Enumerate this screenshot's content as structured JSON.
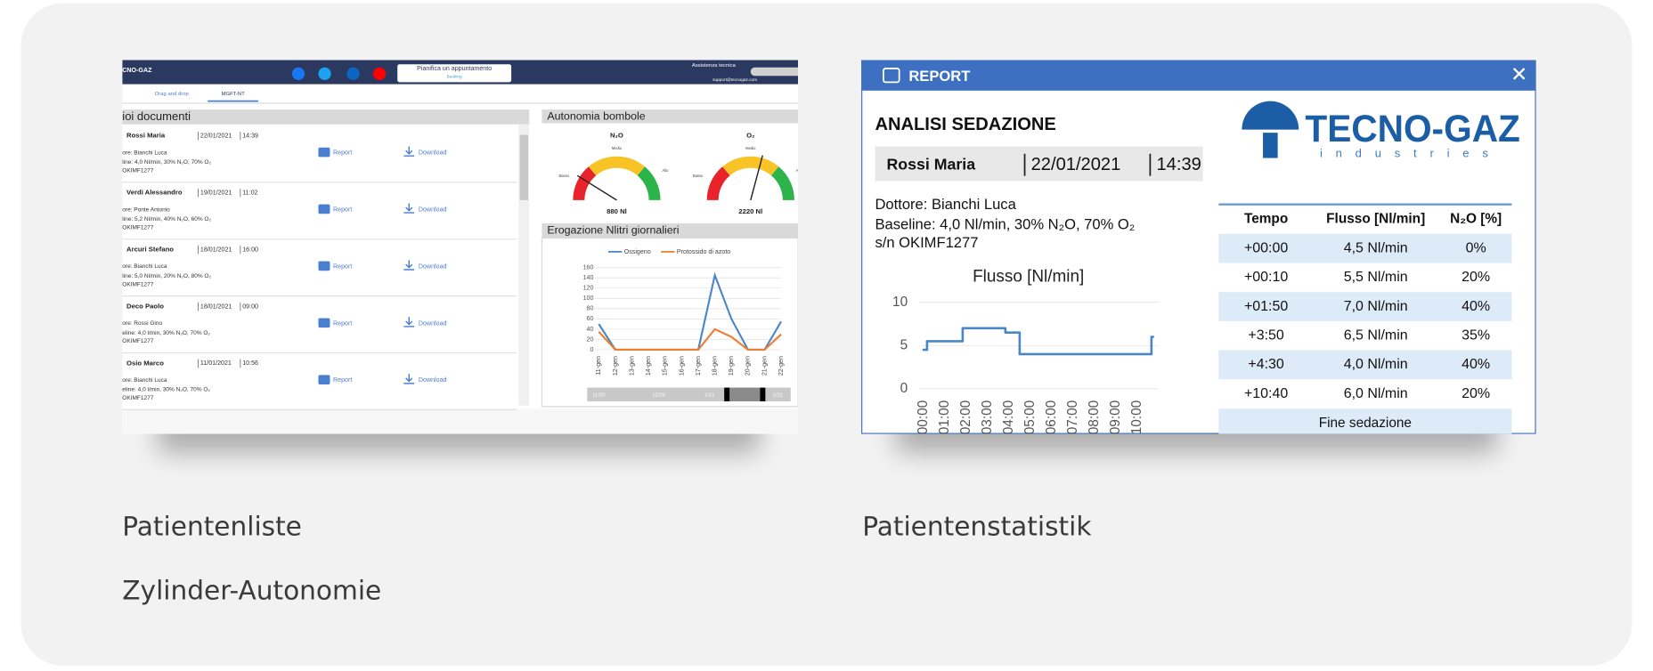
{
  "patient_list": {
    "caption": "Patientenliste",
    "caption_2": "Zylinder-Autonomie",
    "brand": "CNO-GAZ",
    "booking_title": "Pianifica un appuntamento",
    "booking_sub": "Booking",
    "support_title": "Assistenza tecnica",
    "support_email": "support@tecnogaz.com",
    "tabs": [
      "Drag and drop",
      "MGFT-NT"
    ],
    "documents_title": "ioi documenti",
    "report_label": "Report",
    "download_label": "Download",
    "documents": [
      {
        "name": "Rossi Maria",
        "date": "22/01/2021",
        "time": "14:39",
        "doctor": "ore: Bianchi Luca",
        "baseline": "line: 4,0 Nl/min, 30% N₂O, 70% O₂",
        "serial": "OKIMF1277"
      },
      {
        "name": "Verdi Alessandro",
        "date": "19/01/2021",
        "time": "11:02",
        "doctor": "ore: Ponte Antonio",
        "baseline": "line: 5,2 Nl/min, 40% N₂O, 60% O₂",
        "serial": "OKIMF1277"
      },
      {
        "name": "Arcuri Stefano",
        "date": "18/01/2021",
        "time": "16:00",
        "doctor": "ore: Bianchi Luca",
        "baseline": "line: 5,0 Nl/min, 20% N₂O, 80% O₂",
        "serial": "OKIMF1277"
      },
      {
        "name": "Deco Paolo",
        "date": "18/01/2021",
        "time": "09:00",
        "doctor": "ore: Rossi Gino",
        "baseline": "eline: 4,0 l/min, 30% N₂O, 70% O₂",
        "serial": "OKIMF1277"
      },
      {
        "name": "Osio Marco",
        "date": "11/01/2021",
        "time": "10:56",
        "doctor": "ore: Bianchi Luca",
        "baseline": "eline: 4,0 l/min, 30% N₂O, 70% O₂",
        "serial": "OKIMF1277"
      }
    ],
    "cylinders_title": "Autonomia bombole",
    "gauges": [
      {
        "title": "N₂O",
        "value_label": "880 Nl",
        "low": "Basso",
        "mid": "Medio",
        "high": "Alto"
      },
      {
        "title": "O₂",
        "value_label": "2220 Nl",
        "low": "Basso",
        "mid": "Medio",
        "high": "Alto"
      }
    ],
    "slider_labels": [
      "11/20",
      "12/20",
      "1/21",
      "2/21"
    ]
  },
  "chart_data": [
    {
      "type": "line",
      "title": "Erogazione Nlitri giornalieri",
      "categories": [
        "11-gen",
        "12-gen",
        "13-gen",
        "14-gen",
        "15-gen",
        "16-gen",
        "17-gen",
        "18-gen",
        "19-gen",
        "20-gen",
        "21-gen",
        "22-gen"
      ],
      "series": [
        {
          "name": "Ossigeno",
          "color": "#4a86c8",
          "values": [
            50,
            0,
            0,
            0,
            0,
            0,
            0,
            145,
            60,
            0,
            0,
            55
          ]
        },
        {
          "name": "Protossido di azoto",
          "color": "#ed7d31",
          "values": [
            35,
            0,
            0,
            0,
            0,
            0,
            0,
            40,
            25,
            0,
            0,
            30
          ]
        }
      ],
      "ylim": [
        0,
        160
      ],
      "yticks": [
        0,
        20,
        40,
        60,
        80,
        100,
        120,
        140,
        160
      ],
      "grid": true,
      "legend": "top"
    },
    {
      "type": "line",
      "interpolation": "step",
      "title": "Flusso [Nl/min]",
      "x": [
        0,
        0.167,
        1.833,
        3.833,
        4.5,
        10.667
      ],
      "values": [
        4.5,
        5.5,
        7,
        6.5,
        4,
        6
      ],
      "color": "#4a86c8",
      "xlim": [
        0,
        11
      ],
      "xticks": [
        {
          "value": 0,
          "label": "00:00"
        },
        {
          "value": 1,
          "label": "01:00"
        },
        {
          "value": 2,
          "label": "02:00"
        },
        {
          "value": 3,
          "label": "03:00"
        },
        {
          "value": 4,
          "label": "04:00"
        },
        {
          "value": 5,
          "label": "05:00"
        },
        {
          "value": 6,
          "label": "06:00"
        },
        {
          "value": 7,
          "label": "07:00"
        },
        {
          "value": 8,
          "label": "08:00"
        },
        {
          "value": 9,
          "label": "09:00"
        },
        {
          "value": 10,
          "label": "10:00"
        }
      ],
      "ylim": [
        0,
        10
      ],
      "yticks": [
        0,
        5,
        10
      ],
      "grid": true
    }
  ],
  "report": {
    "caption": "Patientenstatistik",
    "window_title": "REPORT",
    "heading": "ANALISI SEDAZIONE",
    "patient": "Rossi Maria",
    "date": "22/01/2021",
    "time": "14:39",
    "doctor": "Dottore: Bianchi Luca",
    "baseline": "Baseline: 4,0 Nl/min, 30% N₂O, 70% O₂",
    "serial": "s/n OKIMF1277",
    "logo": "TECNO-GAZ",
    "logo_sub": "industries",
    "table": {
      "header": [
        "Tempo",
        "Flusso [Nl/min]",
        "N₂O [%]"
      ],
      "rows": [
        [
          "+00:00",
          "4,5 Nl/min",
          "0%"
        ],
        [
          "+00:10",
          "5,5 Nl/min",
          "20%"
        ],
        [
          "+01:50",
          "7,0 Nl/min",
          "40%"
        ],
        [
          "+3:50",
          "6,5 Nl/min",
          "35%"
        ],
        [
          "+4:30",
          "4,0 Nl/min",
          "40%"
        ],
        [
          "+10:40",
          "6,0 Nl/min",
          "20%"
        ]
      ],
      "footer": "Fine sedazione"
    }
  }
}
